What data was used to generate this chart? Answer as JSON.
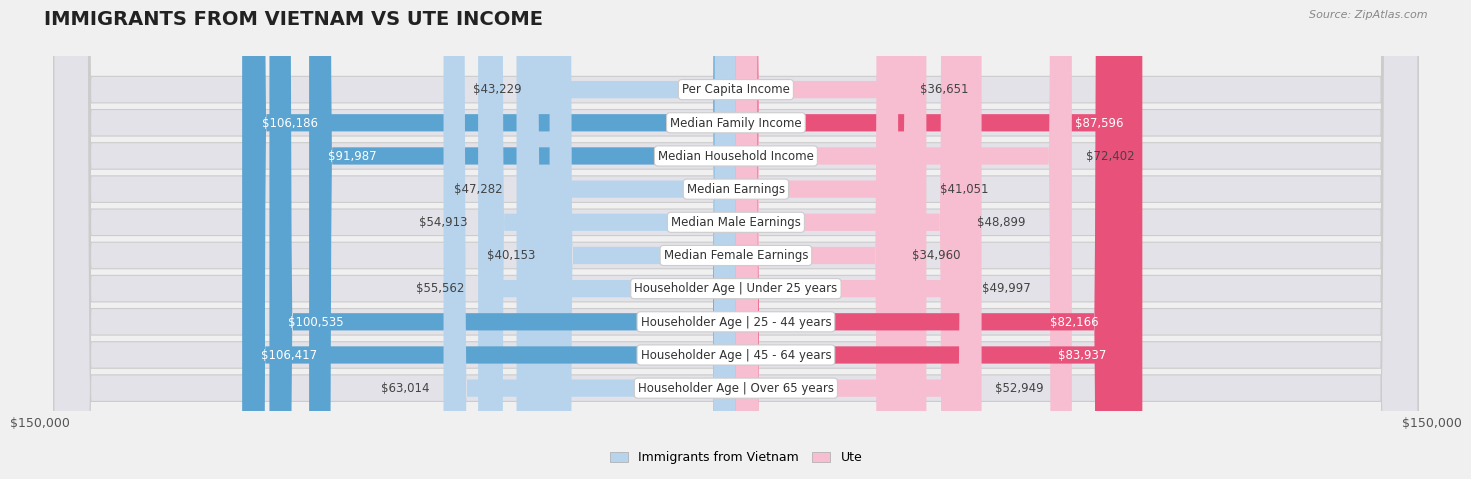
{
  "title": "IMMIGRANTS FROM VIETNAM VS UTE INCOME",
  "source": "Source: ZipAtlas.com",
  "categories": [
    "Per Capita Income",
    "Median Family Income",
    "Median Household Income",
    "Median Earnings",
    "Median Male Earnings",
    "Median Female Earnings",
    "Householder Age | Under 25 years",
    "Householder Age | 25 - 44 years",
    "Householder Age | 45 - 64 years",
    "Householder Age | Over 65 years"
  ],
  "vietnam_values": [
    43229,
    106186,
    91987,
    47282,
    54913,
    40153,
    55562,
    100535,
    106417,
    63014
  ],
  "ute_values": [
    36651,
    87596,
    72402,
    41051,
    48899,
    34960,
    49997,
    82166,
    83937,
    52949
  ],
  "vietnam_color_light": "#b8d4ec",
  "vietnam_color_dark": "#5ba3d0",
  "ute_color_light": "#f7bdd0",
  "ute_color_dark": "#e8527a",
  "vietnam_threshold": 75000,
  "ute_threshold": 75000,
  "max_value": 150000,
  "vietnam_label": "Immigrants from Vietnam",
  "ute_label": "Ute",
  "background_color": "#f0f0f0",
  "row_bg_color": "#e8e8ec",
  "title_fontsize": 14,
  "label_fontsize": 8.5,
  "value_fontsize": 8.5,
  "axis_fontsize": 9,
  "axis_label": "$150,000"
}
